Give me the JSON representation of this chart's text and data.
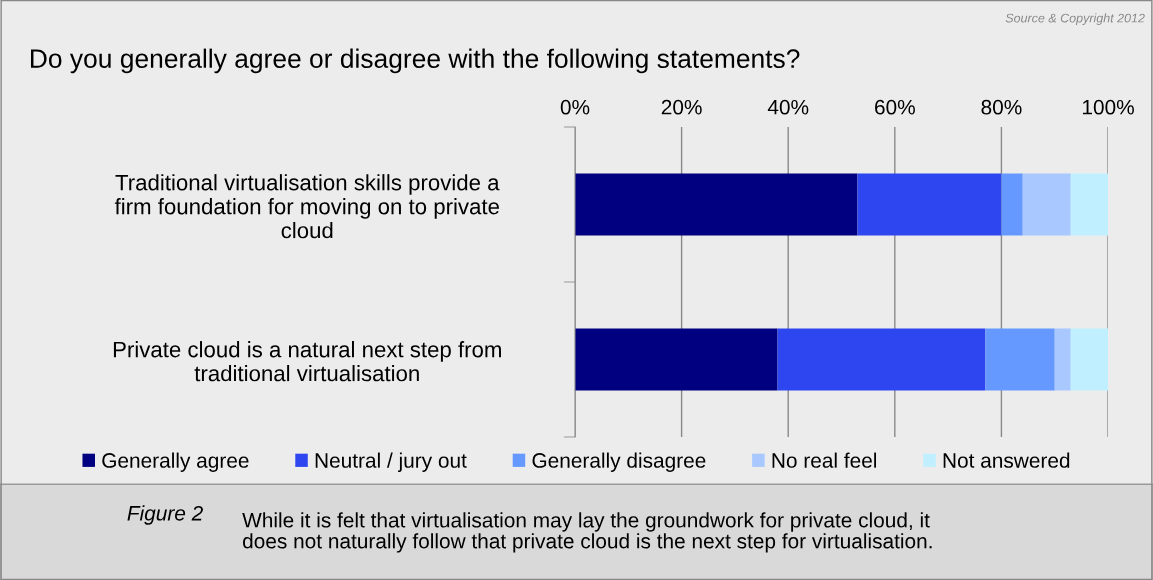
{
  "chart_data": {
    "type": "bar",
    "orientation": "horizontal",
    "stacked": true,
    "title": "Do you generally agree or disagree with the following statements?",
    "categories": [
      "Traditional virtualisation skills provide a\nfirm foundation for moving on to private\ncloud",
      "Private cloud is a natural next step from\ntraditional virtualisation"
    ],
    "series": [
      {
        "name": "Generally agree",
        "color": "#000080",
        "values": [
          53,
          38
        ]
      },
      {
        "name": "Neutral / jury out",
        "color": "#2e46f0",
        "values": [
          27,
          39
        ]
      },
      {
        "name": "Generally disagree",
        "color": "#6699ff",
        "values": [
          4,
          13
        ]
      },
      {
        "name": "No real feel",
        "color": "#a8c8ff",
        "values": [
          9,
          3
        ]
      },
      {
        "name": "Not answered",
        "color": "#c0f0ff",
        "values": [
          7,
          7
        ]
      }
    ],
    "xlim": [
      0,
      100
    ],
    "xticks": [
      {
        "value": 0,
        "label": "0%"
      },
      {
        "value": 20,
        "label": "20%"
      },
      {
        "value": 40,
        "label": "40%"
      },
      {
        "value": 60,
        "label": "60%"
      },
      {
        "value": 80,
        "label": "80%"
      },
      {
        "value": 100,
        "label": "100%"
      }
    ],
    "grid": "x",
    "legend": "bottom",
    "annotations": [
      "Source & Copyright 2012",
      "Figure 2",
      "While it is felt that virtualisation may lay the groundwork for private cloud, it\ndoes not naturally follow that private cloud is the next step for virtualisation."
    ]
  }
}
